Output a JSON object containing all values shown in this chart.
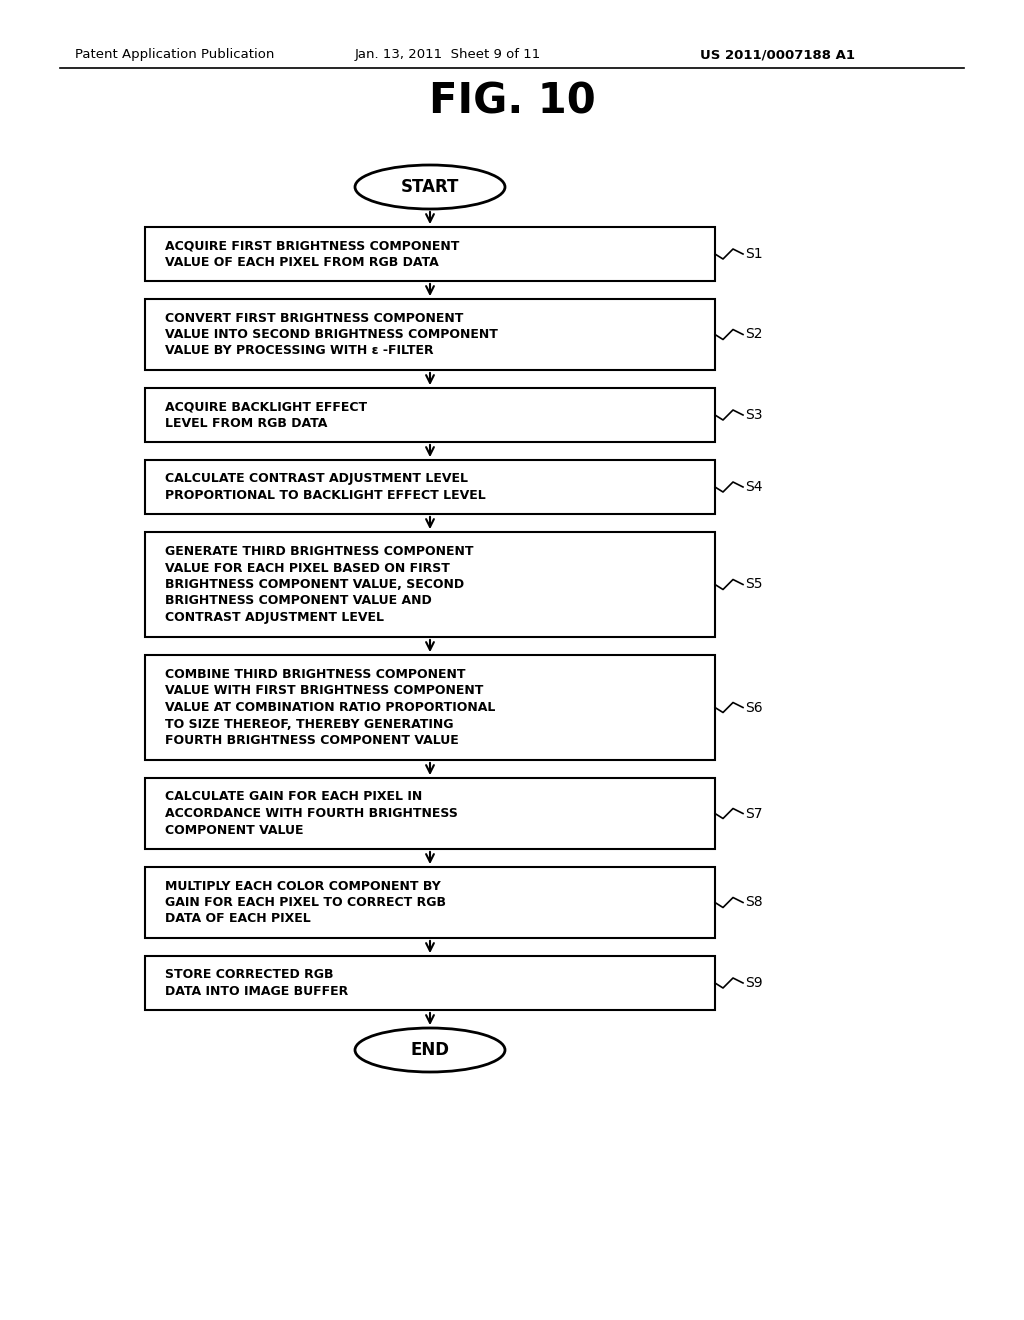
{
  "background_color": "#ffffff",
  "header_left": "Patent Application Publication",
  "header_mid": "Jan. 13, 2011  Sheet 9 of 11",
  "header_right": "US 2011/0007188 A1",
  "fig_title": "FIG. 10",
  "start_label": "START",
  "end_label": "END",
  "steps": [
    {
      "id": "S1",
      "text": "ACQUIRE FIRST BRIGHTNESS COMPONENT\nVALUE OF EACH PIXEL FROM RGB DATA",
      "nlines": 2
    },
    {
      "id": "S2",
      "text": "CONVERT FIRST BRIGHTNESS COMPONENT\nVALUE INTO SECOND BRIGHTNESS COMPONENT\nVALUE BY PROCESSING WITH ε -FILTER",
      "nlines": 3
    },
    {
      "id": "S3",
      "text": "ACQUIRE BACKLIGHT EFFECT\nLEVEL FROM RGB DATA",
      "nlines": 2
    },
    {
      "id": "S4",
      "text": "CALCULATE CONTRAST ADJUSTMENT LEVEL\nPROPORTIONAL TO BACKLIGHT EFFECT LEVEL",
      "nlines": 2
    },
    {
      "id": "S5",
      "text": "GENERATE THIRD BRIGHTNESS COMPONENT\nVALUE FOR EACH PIXEL BASED ON FIRST\nBRIGHTNESS COMPONENT VALUE, SECOND\nBRIGHTNESS COMPONENT VALUE AND\nCONTRAST ADJUSTMENT LEVEL",
      "nlines": 5
    },
    {
      "id": "S6",
      "text": "COMBINE THIRD BRIGHTNESS COMPONENT\nVALUE WITH FIRST BRIGHTNESS COMPONENT\nVALUE AT COMBINATION RATIO PROPORTIONAL\nTO SIZE THEREOF, THEREBY GENERATING\nFOURTH BRIGHTNESS COMPONENT VALUE",
      "nlines": 5
    },
    {
      "id": "S7",
      "text": "CALCULATE GAIN FOR EACH PIXEL IN\nACCORDANCE WITH FOURTH BRIGHTNESS\nCOMPONENT VALUE",
      "nlines": 3
    },
    {
      "id": "S8",
      "text": "MULTIPLY EACH COLOR COMPONENT BY\nGAIN FOR EACH PIXEL TO CORRECT RGB\nDATA OF EACH PIXEL",
      "nlines": 3
    },
    {
      "id": "S9",
      "text": "STORE CORRECTED RGB\nDATA INTO IMAGE BUFFER",
      "nlines": 2
    }
  ]
}
